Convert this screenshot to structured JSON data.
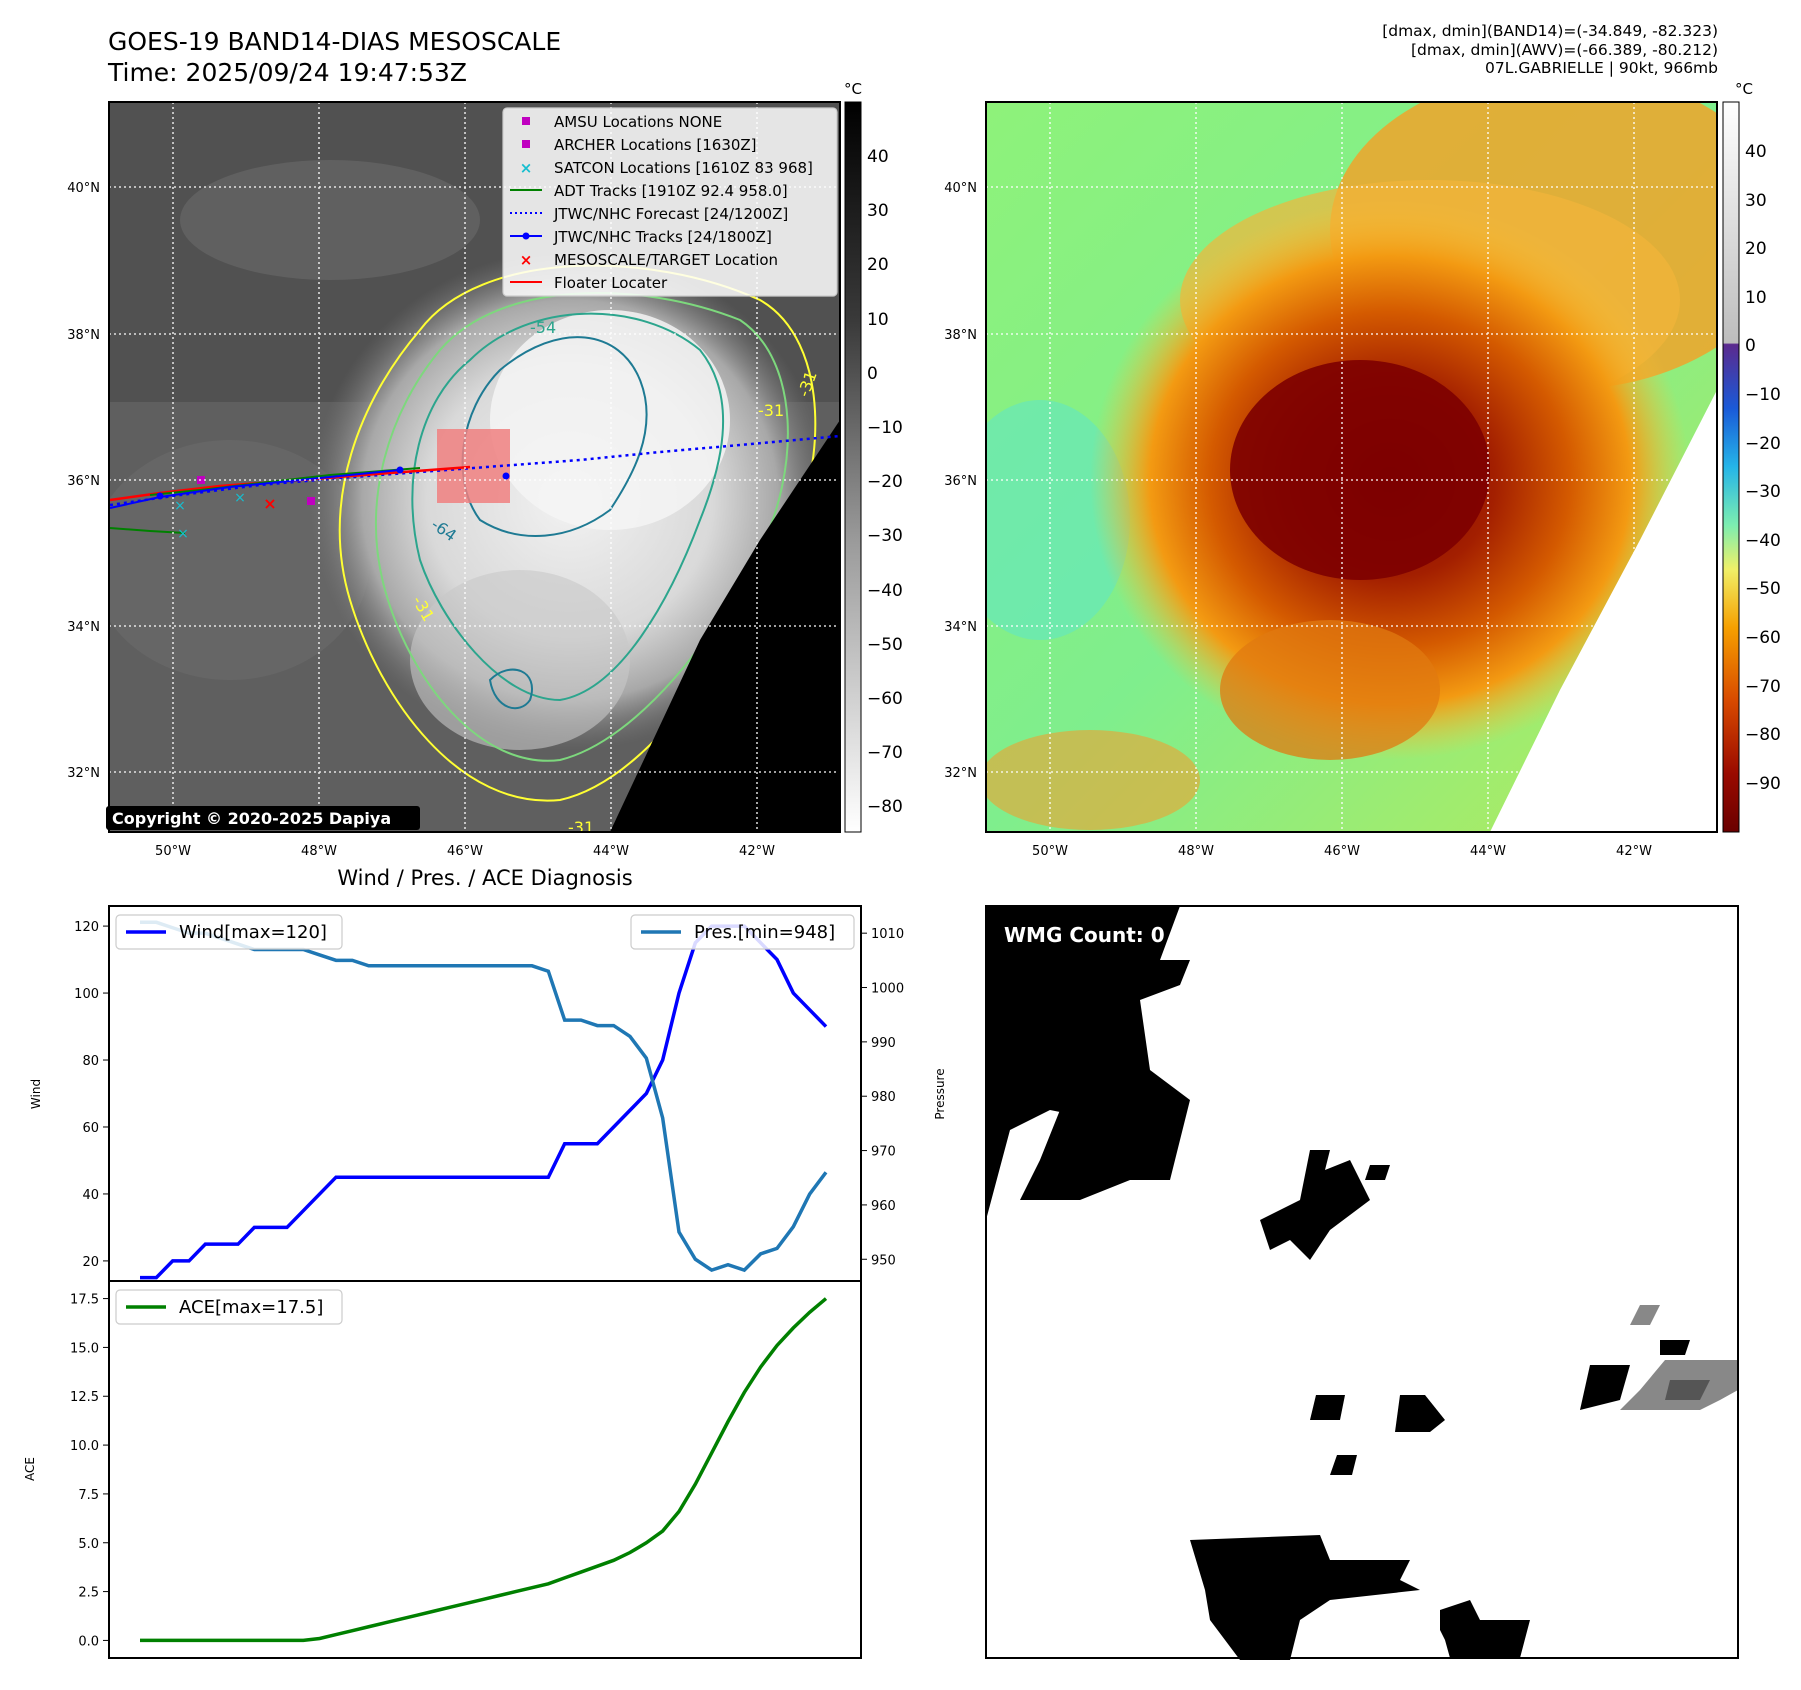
{
  "header": {
    "title_line1": "GOES-19 BAND14-DIAS MESOSCALE",
    "title_line2": "Time: 2025/09/24 19:47:53Z",
    "meta_line1": "[dmax, dmin](BAND14)=(-34.849, -82.323)",
    "meta_line2": "[dmax, dmin](AWV)=(-66.389, -80.212)",
    "meta_line3": "07L.GABRIELLE | 90kt, 966mb"
  },
  "ir_map": {
    "lon_ticks": [
      "50°W",
      "48°W",
      "46°W",
      "44°W",
      "42°W"
    ],
    "lat_ticks": [
      "40°N",
      "38°N",
      "36°N",
      "34°N",
      "32°N"
    ],
    "copyright": "Copyright © 2020-2025 Dapiya",
    "contour_labels": [
      "-54",
      "-64",
      "-31",
      "-31",
      "-31",
      "-31"
    ],
    "legend": [
      {
        "label": "AMSU Locations NONE",
        "color": "#c000c0",
        "marker": "square"
      },
      {
        "label": "ARCHER Locations [1630Z]",
        "color": "#c000c0",
        "marker": "square"
      },
      {
        "label": "SATCON Locations [1610Z 83 968]",
        "color": "#17becf",
        "marker": "x"
      },
      {
        "label": "ADT Tracks [1910Z 92.4 958.0]",
        "color": "#008000",
        "marker": "line"
      },
      {
        "label": "JTWC/NHC Forecast [24/1200Z]",
        "color": "#0000ff",
        "marker": "dotted"
      },
      {
        "label": "JTWC/NHC Tracks [24/1800Z]",
        "color": "#0000ff",
        "marker": "line-dot"
      },
      {
        "label": "MESOSCALE/TARGET Location",
        "color": "#ff0000",
        "marker": "x"
      },
      {
        "label": "Floater Locater",
        "color": "#ff0000",
        "marker": "line"
      }
    ],
    "colorbar_unit": "°C",
    "colorbar_ticks": [
      "40",
      "30",
      "20",
      "10",
      "0",
      "−10",
      "−20",
      "−30",
      "−40",
      "−50",
      "−60",
      "−70",
      "−80"
    ]
  },
  "wv_map": {
    "lon_ticks": [
      "50°W",
      "48°W",
      "46°W",
      "44°W",
      "42°W"
    ],
    "lat_ticks": [
      "40°N",
      "38°N",
      "36°N",
      "34°N",
      "32°N"
    ],
    "colorbar_unit": "°C",
    "colorbar_ticks": [
      "40",
      "30",
      "20",
      "10",
      "0",
      "−10",
      "−20",
      "−30",
      "−40",
      "−50",
      "−60",
      "−70",
      "−80",
      "−90"
    ]
  },
  "wmg": {
    "label": "WMG Count: 0"
  },
  "chart_data": [
    {
      "type": "line",
      "title": "Wind / Pres. / ACE Diagnosis",
      "xlabel": "",
      "ylabel": "Wind",
      "ylabel_right": "Pressure",
      "x": [
        0,
        1,
        2,
        3,
        4,
        5,
        6,
        7,
        8,
        9,
        10,
        11,
        12,
        13,
        14,
        15,
        16,
        17,
        18,
        19,
        20,
        21,
        22,
        23,
        24,
        25,
        26,
        27,
        28,
        29,
        30,
        31,
        32,
        33,
        34,
        35,
        36,
        37,
        38,
        39,
        40,
        41,
        42
      ],
      "series": [
        {
          "name": "Wind[max=120]",
          "axis": "left",
          "color": "#0000ff",
          "values": [
            15,
            15,
            20,
            20,
            25,
            25,
            25,
            30,
            30,
            30,
            35,
            40,
            45,
            45,
            45,
            45,
            45,
            45,
            45,
            45,
            45,
            45,
            45,
            45,
            45,
            45,
            55,
            55,
            55,
            60,
            65,
            70,
            80,
            100,
            115,
            120,
            120,
            120,
            115,
            110,
            100,
            95,
            90
          ]
        },
        {
          "name": "Pres.[min=948]",
          "axis": "right",
          "color": "#1f77b4",
          "values": [
            1012,
            1012,
            1011,
            1010,
            1010,
            1009,
            1008,
            1007,
            1007,
            1007,
            1007,
            1006,
            1005,
            1005,
            1004,
            1004,
            1004,
            1004,
            1004,
            1004,
            1004,
            1004,
            1004,
            1004,
            1004,
            1003,
            994,
            994,
            993,
            993,
            991,
            987,
            976,
            955,
            950,
            948,
            949,
            948,
            951,
            952,
            956,
            962,
            966
          ]
        }
      ],
      "ylim": [
        14,
        126
      ],
      "ylim_right": [
        946,
        1015
      ],
      "yticks": [
        20,
        40,
        60,
        80,
        100,
        120
      ],
      "yticks_right": [
        950,
        960,
        970,
        980,
        990,
        1000,
        1010
      ],
      "legend_left": "Wind[max=120]",
      "legend_right": "Pres.[min=948]"
    },
    {
      "type": "line",
      "title": "",
      "xlabel": "",
      "ylabel": "ACE",
      "x": [
        0,
        1,
        2,
        3,
        4,
        5,
        6,
        7,
        8,
        9,
        10,
        11,
        12,
        13,
        14,
        15,
        16,
        17,
        18,
        19,
        20,
        21,
        22,
        23,
        24,
        25,
        26,
        27,
        28,
        29,
        30,
        31,
        32,
        33,
        34,
        35,
        36,
        37,
        38,
        39,
        40,
        41,
        42
      ],
      "series": [
        {
          "name": "ACE[max=17.5]",
          "color": "#008000",
          "values": [
            0,
            0,
            0,
            0,
            0,
            0,
            0,
            0,
            0,
            0,
            0,
            0.1,
            0.3,
            0.5,
            0.7,
            0.9,
            1.1,
            1.3,
            1.5,
            1.7,
            1.9,
            2.1,
            2.3,
            2.5,
            2.7,
            2.9,
            3.2,
            3.5,
            3.8,
            4.1,
            4.5,
            5.0,
            5.6,
            6.6,
            8.0,
            9.6,
            11.2,
            12.7,
            14.0,
            15.1,
            16.0,
            16.8,
            17.5
          ]
        }
      ],
      "ylim": [
        -0.9,
        18.4
      ],
      "yticks": [
        0.0,
        2.5,
        5.0,
        7.5,
        10.0,
        12.5,
        15.0,
        17.5
      ],
      "ytick_labels": [
        "0.0",
        "2.5",
        "5.0",
        "7.5",
        "10.0",
        "12.5",
        "15.0",
        "17.5"
      ],
      "legend": "ACE[max=17.5]"
    }
  ]
}
